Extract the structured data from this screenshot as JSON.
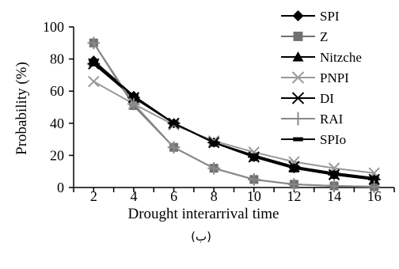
{
  "chart_data": {
    "type": "line",
    "title": "",
    "xlabel": "Drought interarrival time",
    "ylabel": "Probability (%)",
    "caption": "(ب)",
    "x": [
      2,
      4,
      6,
      8,
      10,
      12,
      14,
      16
    ],
    "xlim": [
      1,
      17
    ],
    "ylim": [
      0,
      100
    ],
    "yticks": [
      0,
      20,
      40,
      60,
      80,
      100
    ],
    "grid": false,
    "legend_position": "top-right",
    "series": [
      {
        "name": "SPI",
        "marker": "diamond",
        "color": "#000000",
        "values": [
          79,
          57,
          40,
          28,
          19,
          12,
          8,
          5
        ]
      },
      {
        "name": "Z",
        "marker": "square",
        "color": "#707070",
        "values": [
          90,
          51,
          25,
          12,
          5,
          2,
          1,
          0.5
        ]
      },
      {
        "name": "Nitzche",
        "marker": "triangle",
        "color": "#000000",
        "values": [
          78,
          56,
          40,
          28,
          19,
          12,
          8,
          5
        ]
      },
      {
        "name": "PNPI",
        "marker": "x",
        "color": "#999999",
        "values": [
          66,
          52,
          39,
          29,
          22,
          16,
          12,
          9
        ]
      },
      {
        "name": "DI",
        "marker": "star",
        "color": "#000000",
        "values": [
          77,
          56,
          40,
          28,
          19,
          13,
          8,
          5
        ]
      },
      {
        "name": "RAI",
        "marker": "plus",
        "color": "#888888",
        "values": [
          90,
          52,
          25,
          12,
          5,
          2,
          1,
          0.5
        ]
      },
      {
        "name": "SPIo",
        "marker": "dash",
        "color": "#000000",
        "values": [
          78,
          57,
          40,
          28,
          20,
          13,
          9,
          6
        ]
      }
    ]
  }
}
